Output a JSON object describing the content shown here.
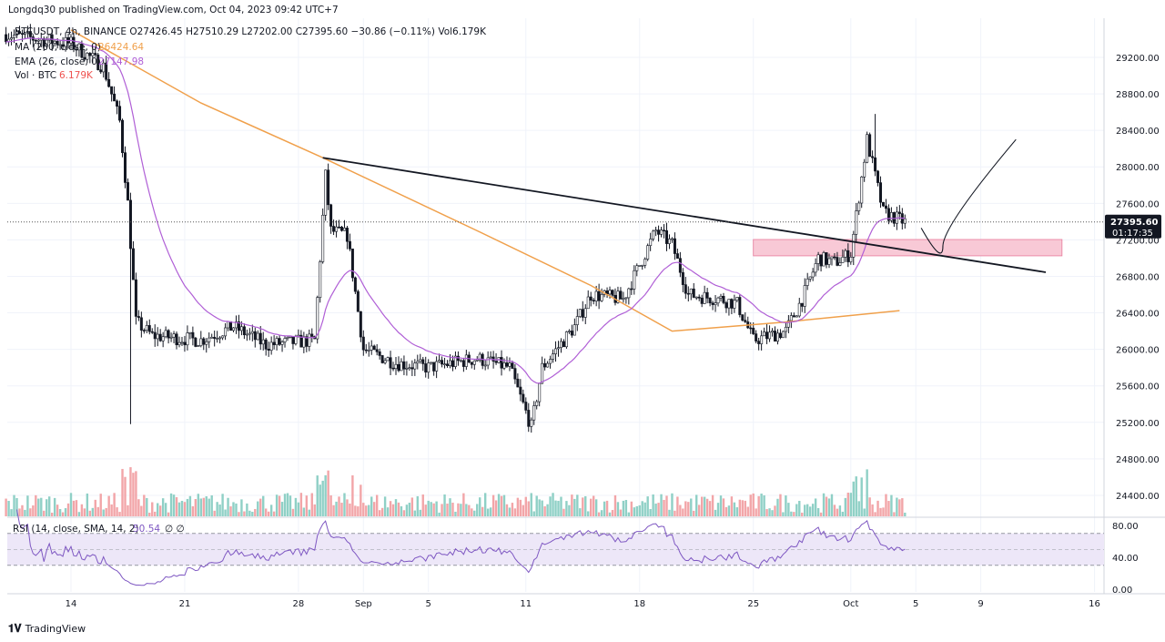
{
  "header": {
    "published": "Longdq30 published on TradingView.com, Oct 04, 2023 09:42 UTC+7"
  },
  "legend": {
    "symbol": "BTCUSDT, 4h, BINANCE",
    "ohlc": "O27426.45  H27510.29  L27202.00  C27395.60  −30.86 (−0.11%)  Vol6.179K",
    "ma_label": "MA (200, close, 0)",
    "ma_value": "26424.64",
    "ema_label": "EMA (26, close, 0)",
    "ema_value": "27147.98",
    "vol_label": "Vol · BTC",
    "vol_value": "6.179K",
    "rsi_label": "RSI (14, close, SMA, 14, 2)",
    "rsi_value": "50.54",
    "rsi_icons": "∅ ∅"
  },
  "price_axis": {
    "ticks": [
      "29200.00",
      "28800.00",
      "28400.00",
      "28000.00",
      "27600.00",
      "27200.00",
      "26800.00",
      "26400.00",
      "26000.00",
      "25600.00",
      "25200.00",
      "24800.00",
      "24400.00"
    ],
    "last_price": "27395.60",
    "countdown": "01:17:35"
  },
  "rsi_axis": {
    "ticks": [
      "80.00",
      "40.00",
      "0.00"
    ],
    "bands": [
      70,
      30
    ]
  },
  "time_axis": {
    "ticks": [
      {
        "d": "2023-08-14",
        "l": "14"
      },
      {
        "d": "2023-08-21",
        "l": "21"
      },
      {
        "d": "2023-08-28",
        "l": "28"
      },
      {
        "d": "2023-09-01",
        "l": "Sep"
      },
      {
        "d": "2023-09-05",
        "l": "5"
      },
      {
        "d": "2023-09-11",
        "l": "11"
      },
      {
        "d": "2023-09-18",
        "l": "18"
      },
      {
        "d": "2023-09-25",
        "l": "25"
      },
      {
        "d": "2023-10-01",
        "l": "Oct"
      },
      {
        "d": "2023-10-05",
        "l": "5"
      },
      {
        "d": "2023-10-09",
        "l": "9"
      },
      {
        "d": "2023-10-16",
        "l": "16"
      }
    ]
  },
  "footer": {
    "brand": "TradingView"
  },
  "colors": {
    "ma": "#f0a04b",
    "ema": "#b05fd6",
    "up_vol": "#8fd0c6",
    "down_vol": "#f2a5a8",
    "zone": "#f8c9d6",
    "rsi_band": "#ede7f8",
    "rsi_line": "#7e57c2",
    "candle": "#131722"
  },
  "chart_data": {
    "type": "candlestick",
    "symbol": "BTCUSDT",
    "interval": "4h",
    "close_path": [
      [
        "2023-08-10",
        29450
      ],
      [
        "2023-08-14",
        29350
      ],
      [
        "2023-08-16",
        29100
      ],
      [
        "2023-08-17",
        28500
      ],
      [
        "2023-08-17T12",
        27600
      ],
      [
        "2023-08-18",
        26300
      ],
      [
        "2023-08-19",
        26150
      ],
      [
        "2023-08-22",
        26100
      ],
      [
        "2023-08-24",
        26250
      ],
      [
        "2023-08-26",
        26050
      ],
      [
        "2023-08-29",
        26100
      ],
      [
        "2023-08-29T16",
        27900
      ],
      [
        "2023-08-30",
        27300
      ],
      [
        "2023-08-31",
        27250
      ],
      [
        "2023-09-01",
        26000
      ],
      [
        "2023-09-03",
        25850
      ],
      [
        "2023-09-05",
        25800
      ],
      [
        "2023-09-08",
        25900
      ],
      [
        "2023-09-10",
        25800
      ],
      [
        "2023-09-11T08",
        25150
      ],
      [
        "2023-09-12",
        25800
      ],
      [
        "2023-09-14",
        26250
      ],
      [
        "2023-09-15",
        26600
      ],
      [
        "2023-09-17",
        26550
      ],
      [
        "2023-09-18T08",
        27050
      ],
      [
        "2023-09-19",
        27300
      ],
      [
        "2023-09-20",
        27150
      ],
      [
        "2023-09-21",
        26600
      ],
      [
        "2023-09-23",
        26550
      ],
      [
        "2023-09-24",
        26500
      ],
      [
        "2023-09-25",
        26100
      ],
      [
        "2023-09-27",
        26200
      ],
      [
        "2023-09-28",
        26550
      ],
      [
        "2023-09-29",
        27000
      ],
      [
        "2023-09-30",
        26950
      ],
      [
        "2023-10-01",
        27050
      ],
      [
        "2023-10-02",
        28300
      ],
      [
        "2023-10-03",
        27500
      ],
      [
        "2023-10-04T08",
        27395.6
      ]
    ],
    "ma200_path": [
      [
        "2023-08-14",
        29500
      ],
      [
        "2023-08-22",
        28700
      ],
      [
        "2023-08-29T12",
        28100
      ],
      [
        "2023-09-08",
        27300
      ],
      [
        "2023-09-15",
        26700
      ],
      [
        "2023-09-20",
        26200
      ],
      [
        "2023-09-27",
        26300
      ],
      [
        "2023-10-04",
        26424.64
      ]
    ],
    "trendline": [
      [
        "2023-08-29T12",
        28100
      ],
      [
        "2023-10-13",
        26845
      ]
    ],
    "zone": {
      "from": "2023-09-25",
      "to": "2023-10-14",
      "top": 27204,
      "bottom": 27025
    },
    "projection": [
      [
        "2023-10-05T08",
        27330
      ],
      [
        "2023-10-06T16",
        27130
      ],
      [
        "2023-10-11T04",
        28300
      ]
    ],
    "ylim": [
      24400,
      29600
    ],
    "rsi_ylim": [
      0,
      100
    ]
  }
}
